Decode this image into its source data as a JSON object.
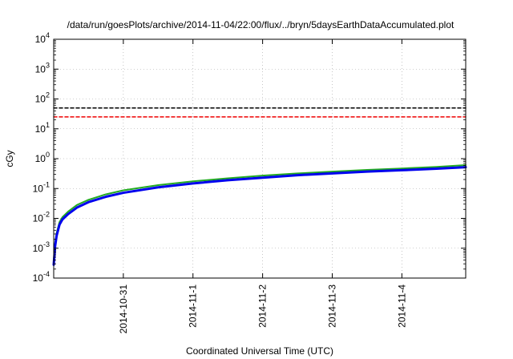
{
  "chart_data": {
    "type": "line",
    "title": "/data/run/goesPlots/archive/2014-11-04/22:00/flux/../bryn/5daysEarthDataAccumulated.plot",
    "xlabel": "Coordinated Universal Time (UTC)",
    "ylabel": "cGy",
    "x_scale": "time",
    "y_scale": "log",
    "xlim": [
      "2014-10-30T00:00",
      "2014-11-04T22:00"
    ],
    "ylim": [
      0.0001,
      10000
    ],
    "x_ticks": [
      "2014-10-31",
      "2014-11-1",
      "2014-11-2",
      "2014-11-3",
      "2014-11-4"
    ],
    "x_tick_values": [
      "2014-10-31T00:00",
      "2014-11-01T00:00",
      "2014-11-02T00:00",
      "2014-11-03T00:00",
      "2014-11-04T00:00"
    ],
    "y_ticks": [
      {
        "base": "10",
        "exp": "-4",
        "value": 0.0001
      },
      {
        "base": "10",
        "exp": "-3",
        "value": 0.001
      },
      {
        "base": "10",
        "exp": "-2",
        "value": 0.01
      },
      {
        "base": "10",
        "exp": "-1",
        "value": 0.1
      },
      {
        "base": "10",
        "exp": "0",
        "value": 1
      },
      {
        "base": "10",
        "exp": "1",
        "value": 10
      },
      {
        "base": "10",
        "exp": "2",
        "value": 100
      },
      {
        "base": "10",
        "exp": "3",
        "value": 1000
      },
      {
        "base": "10",
        "exp": "4",
        "value": 10000
      }
    ],
    "grid": true,
    "series": [
      {
        "color": "#22aa22",
        "width": 2,
        "dash": "",
        "x": [
          "2014-10-30T00:00",
          "2014-10-30T00:30",
          "2014-10-30T01:00",
          "2014-10-30T02:00",
          "2014-10-30T03:00",
          "2014-10-30T05:00",
          "2014-10-30T08:00",
          "2014-10-30T12:00",
          "2014-10-30T18:00",
          "2014-10-31T00:00",
          "2014-10-31T12:00",
          "2014-11-01T00:00",
          "2014-11-01T12:00",
          "2014-11-02T00:00",
          "2014-11-02T12:00",
          "2014-11-03T00:00",
          "2014-11-03T12:00",
          "2014-11-04T00:00",
          "2014-11-04T12:00",
          "2014-11-04T22:00"
        ],
        "values": [
          0.00035,
          0.0015,
          0.0032,
          0.0075,
          0.011,
          0.017,
          0.028,
          0.042,
          0.064,
          0.087,
          0.13,
          0.175,
          0.22,
          0.27,
          0.32,
          0.37,
          0.42,
          0.47,
          0.53,
          0.61
        ]
      },
      {
        "color": "#0000ee",
        "width": 3,
        "dash": "",
        "x": [
          "2014-10-30T00:00",
          "2014-10-30T00:30",
          "2014-10-30T01:00",
          "2014-10-30T02:00",
          "2014-10-30T03:00",
          "2014-10-30T05:00",
          "2014-10-30T08:00",
          "2014-10-30T12:00",
          "2014-10-30T18:00",
          "2014-10-31T00:00",
          "2014-10-31T12:00",
          "2014-11-01T00:00",
          "2014-11-01T12:00",
          "2014-11-02T00:00",
          "2014-11-02T12:00",
          "2014-11-03T00:00",
          "2014-11-03T12:00",
          "2014-11-04T00:00",
          "2014-11-04T12:00",
          "2014-11-04T22:00"
        ],
        "values": [
          0.00028,
          0.0012,
          0.0026,
          0.0062,
          0.0092,
          0.014,
          0.023,
          0.035,
          0.053,
          0.072,
          0.11,
          0.148,
          0.19,
          0.23,
          0.28,
          0.32,
          0.37,
          0.41,
          0.46,
          0.52
        ]
      },
      {
        "color": "#000000",
        "width": 1.5,
        "dash": "4,3",
        "x": [
          "2014-10-30T00:00",
          "2014-11-04T22:00"
        ],
        "values": [
          50,
          50
        ]
      },
      {
        "color": "#ee0000",
        "width": 1.5,
        "dash": "4,3",
        "x": [
          "2014-10-30T00:00",
          "2014-11-04T22:00"
        ],
        "values": [
          25,
          25
        ]
      }
    ]
  }
}
